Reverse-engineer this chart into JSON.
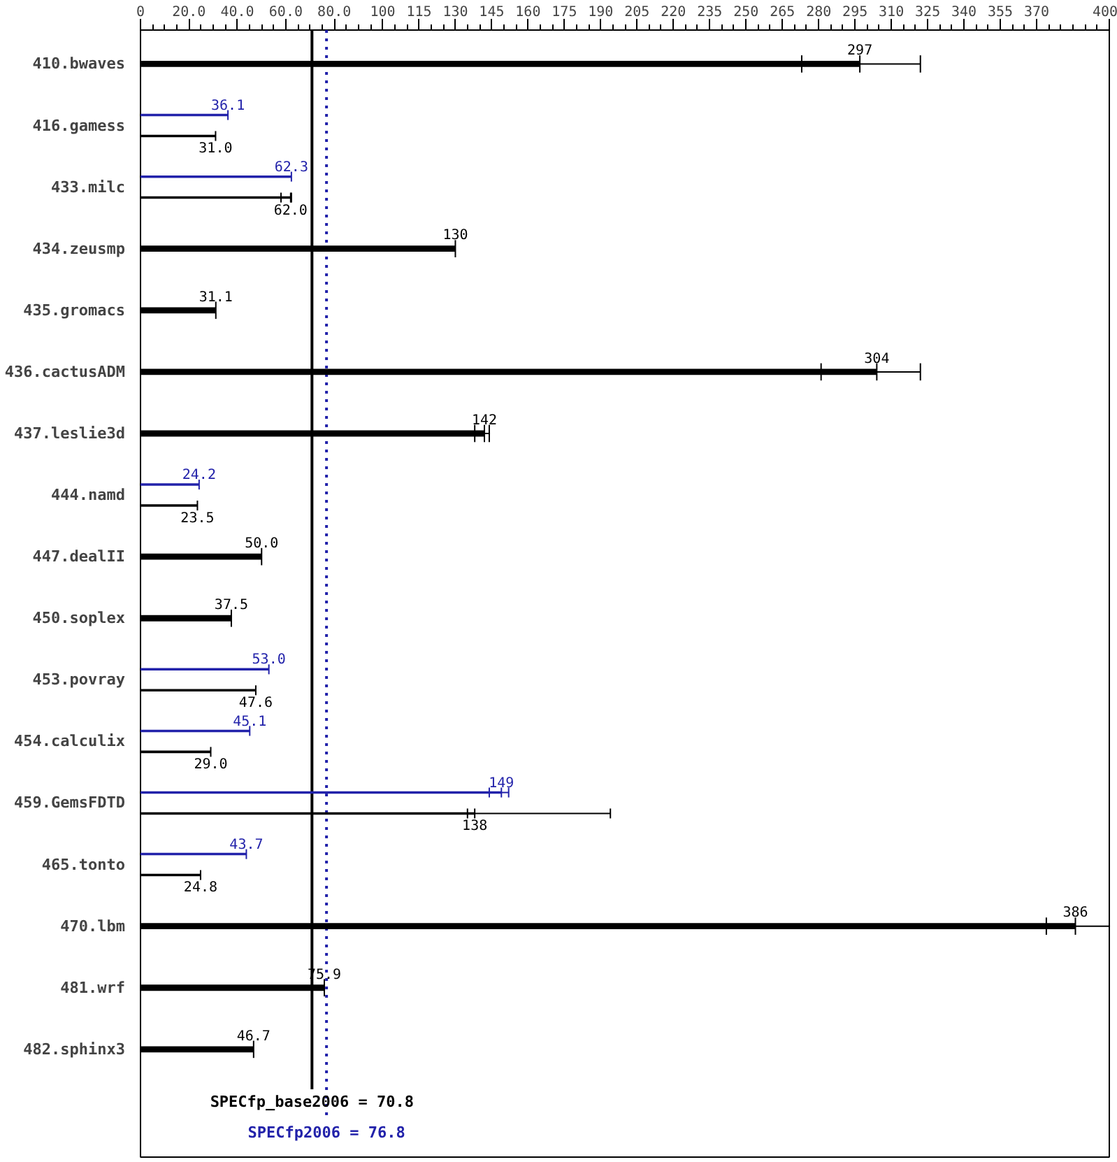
{
  "chart_data": {
    "type": "bar",
    "orientation": "horizontal",
    "categories": [
      "410.bwaves",
      "416.gamess",
      "433.milc",
      "434.zeusmp",
      "435.gromacs",
      "436.cactusADM",
      "437.leslie3d",
      "444.namd",
      "447.dealII",
      "450.soplex",
      "453.povray",
      "454.calculix",
      "459.GemsFDTD",
      "465.tonto",
      "470.lbm",
      "481.wrf",
      "482.sphinx3"
    ],
    "series": [
      {
        "color": "#000000",
        "values": [
          297,
          31.0,
          62.0,
          130,
          31.1,
          304,
          142,
          23.5,
          50.0,
          37.5,
          47.6,
          29.0,
          138,
          24.8,
          386,
          75.9,
          46.7
        ],
        "value_labels": [
          "297",
          "31.0",
          "62.0",
          "130",
          "31.1",
          "304",
          "142",
          "23.5",
          "50.0",
          "37.5",
          "47.6",
          "29.0",
          "138",
          "24.8",
          "386",
          "75.9",
          "46.7"
        ],
        "errors": [
          [
            273,
            322
          ],
          null,
          [
            58,
            62.3
          ],
          null,
          null,
          [
            281,
            322
          ],
          [
            138,
            144
          ],
          null,
          null,
          null,
          null,
          null,
          [
            135,
            194
          ],
          null,
          [
            374,
            400
          ],
          null,
          null
        ]
      },
      {
        "color": "#2222aa",
        "values": [
          null,
          36.1,
          62.3,
          null,
          null,
          null,
          null,
          24.2,
          null,
          null,
          53.0,
          45.1,
          149,
          43.7,
          null,
          null,
          null
        ],
        "value_labels": [
          null,
          "36.1",
          "62.3",
          null,
          null,
          null,
          null,
          "24.2",
          null,
          null,
          "53.0",
          "45.1",
          "149",
          "43.7",
          null,
          null,
          null
        ],
        "errors": [
          null,
          null,
          null,
          null,
          null,
          null,
          null,
          null,
          null,
          null,
          null,
          null,
          [
            144,
            152
          ],
          null,
          null,
          null,
          null
        ]
      }
    ],
    "xlim": [
      0,
      400
    ],
    "xticks": [
      0,
      {
        "value": 20,
        "label": "20.0"
      },
      {
        "value": 40,
        "label": "40.0"
      },
      {
        "value": 60,
        "label": "60.0"
      },
      {
        "value": 80,
        "label": "80.0"
      },
      100,
      115,
      130,
      145,
      160,
      175,
      190,
      205,
      220,
      235,
      250,
      265,
      280,
      295,
      310,
      325,
      340,
      355,
      370,
      400
    ],
    "grid": false,
    "ref_lines": [
      {
        "axis": "x",
        "value": 70.8,
        "label": "SPECfp_base2006 = 70.8",
        "color": "#000000",
        "line_style": "solid"
      },
      {
        "axis": "x",
        "value": 76.8,
        "label": "SPECfp2006 = 76.8",
        "color": "#2222aa",
        "line_style": "dotted"
      }
    ]
  }
}
